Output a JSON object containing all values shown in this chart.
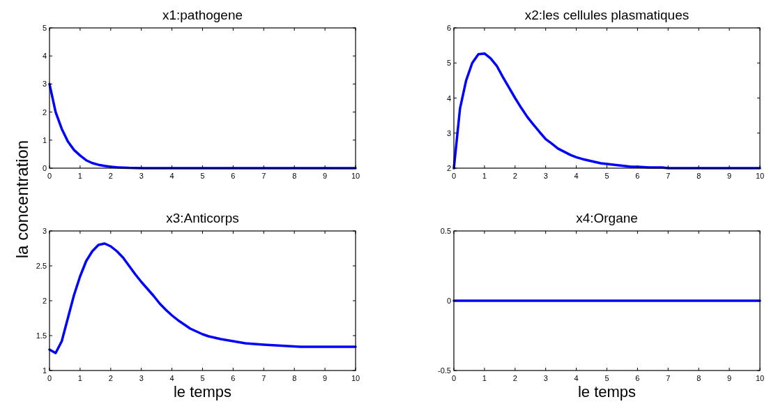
{
  "chart_data": [
    {
      "type": "line",
      "title": "x1:pathogene",
      "ylabel": "la concentration",
      "xlim": [
        0,
        10
      ],
      "ylim": [
        0,
        5
      ],
      "xticks": [
        0,
        1,
        2,
        3,
        4,
        5,
        6,
        7,
        8,
        9,
        10
      ],
      "yticks": [
        0,
        1,
        2,
        3,
        4,
        5
      ],
      "x": [
        0,
        0.2,
        0.4,
        0.6,
        0.8,
        1,
        1.2,
        1.4,
        1.6,
        1.8,
        2,
        2.2,
        2.4,
        2.6,
        3,
        4,
        5,
        6,
        7,
        8,
        9,
        10
      ],
      "series": [
        {
          "color": "#0000ff",
          "values": [
            3,
            2,
            1.4,
            0.95,
            0.65,
            0.45,
            0.28,
            0.18,
            0.12,
            0.08,
            0.05,
            0.03,
            0.02,
            0.01,
            0,
            0,
            0,
            0,
            0,
            0,
            0,
            0
          ]
        }
      ]
    },
    {
      "type": "line",
      "title": "x2:les cellules plasmatiques",
      "xlim": [
        0,
        10
      ],
      "ylim": [
        2,
        6
      ],
      "xticks": [
        0,
        1,
        2,
        3,
        4,
        5,
        6,
        7,
        8,
        9,
        10
      ],
      "yticks": [
        2,
        3,
        4,
        5,
        6
      ],
      "x": [
        0,
        0.2,
        0.4,
        0.6,
        0.8,
        1,
        1.2,
        1.4,
        1.6,
        1.8,
        2,
        2.2,
        2.4,
        2.6,
        2.8,
        3,
        3.2,
        3.4,
        3.6,
        3.8,
        4,
        4.2,
        4.4,
        4.6,
        4.8,
        5,
        5.4,
        5.8,
        6,
        6.4,
        6.8,
        7,
        8,
        9,
        10
      ],
      "series": [
        {
          "color": "#0000ff",
          "values": [
            2,
            3.7,
            4.5,
            5,
            5.25,
            5.27,
            5.13,
            4.92,
            4.6,
            4.3,
            4,
            3.72,
            3.46,
            3.24,
            3.03,
            2.83,
            2.7,
            2.56,
            2.47,
            2.38,
            2.31,
            2.26,
            2.22,
            2.18,
            2.14,
            2.12,
            2.08,
            2.04,
            2.04,
            2.02,
            2.02,
            2,
            2,
            2,
            2
          ]
        }
      ]
    },
    {
      "type": "line",
      "title": "x3:Anticorps",
      "xlabel": "le temps",
      "xlim": [
        0,
        10
      ],
      "ylim": [
        1,
        3
      ],
      "xticks": [
        0,
        1,
        2,
        3,
        4,
        5,
        6,
        7,
        8,
        9,
        10
      ],
      "yticks": [
        1,
        1.5,
        2,
        2.5,
        3
      ],
      "x": [
        0,
        0.2,
        0.4,
        0.6,
        0.8,
        1,
        1.2,
        1.4,
        1.6,
        1.8,
        2,
        2.2,
        2.4,
        2.6,
        2.8,
        3,
        3.2,
        3.4,
        3.6,
        3.8,
        4,
        4.2,
        4.4,
        4.6,
        4.8,
        5,
        5.2,
        5.6,
        6,
        6.4,
        7,
        7.6,
        8.2,
        9,
        10
      ],
      "series": [
        {
          "color": "#0000ff",
          "values": [
            1.3,
            1.25,
            1.42,
            1.75,
            2.08,
            2.35,
            2.57,
            2.71,
            2.8,
            2.82,
            2.78,
            2.71,
            2.62,
            2.5,
            2.38,
            2.27,
            2.17,
            2.07,
            1.96,
            1.87,
            1.79,
            1.72,
            1.66,
            1.6,
            1.56,
            1.52,
            1.49,
            1.45,
            1.42,
            1.39,
            1.37,
            1.355,
            1.34,
            1.34,
            1.34
          ]
        }
      ]
    },
    {
      "type": "line",
      "title": "x4:Organe",
      "xlabel": "le temps",
      "xlim": [
        0,
        10
      ],
      "ylim": [
        -0.5,
        0.5
      ],
      "xticks": [
        0,
        1,
        2,
        3,
        4,
        5,
        6,
        7,
        8,
        9,
        10
      ],
      "yticks": [
        -0.5,
        0,
        0.5
      ],
      "x": [
        0,
        1,
        2,
        3,
        4,
        5,
        6,
        7,
        8,
        9,
        10
      ],
      "series": [
        {
          "color": "#0000ff",
          "values": [
            0,
            0,
            0,
            0,
            0,
            0,
            0,
            0,
            0,
            0,
            0
          ]
        }
      ]
    }
  ]
}
